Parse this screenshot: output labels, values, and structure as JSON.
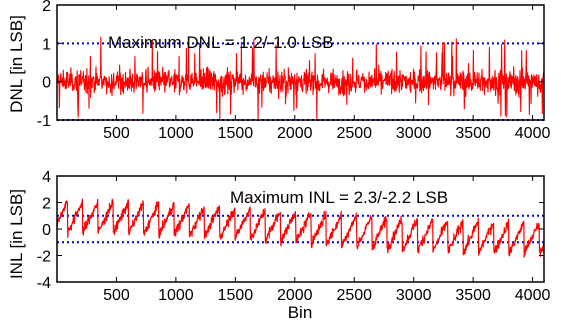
{
  "chart_data": [
    {
      "type": "line",
      "xlabel": "",
      "ylabel": "DNL  [in LSB]",
      "xlim": [
        0,
        4096
      ],
      "ylim": [
        -1,
        2
      ],
      "xticks": [
        500,
        1000,
        1500,
        2000,
        2500,
        3000,
        3500,
        4000
      ],
      "xtick_labels": [
        "500",
        "1000",
        "1500",
        "2000",
        "2500",
        "3000",
        "3500",
        "4000"
      ],
      "yticks": [
        -1,
        0,
        1,
        2
      ],
      "ytick_labels": [
        "-1",
        "0",
        "1",
        "2"
      ],
      "annotation": "Maximum DNL = 1.2/-1.0 LSB",
      "series": [
        {
          "color": "#ff0000",
          "style": "solid",
          "description_values": {
            "max": 1.2,
            "min": -1.0
          }
        }
      ],
      "reference_lines": [
        {
          "y": 1,
          "color": "#0000cc",
          "style": "dotted"
        },
        {
          "y": -1,
          "color": "#0000cc",
          "style": "dotted"
        }
      ]
    },
    {
      "type": "line",
      "xlabel": "Bin",
      "ylabel": "INL  [in LSB]",
      "xlim": [
        0,
        4096
      ],
      "ylim": [
        -4,
        4
      ],
      "xticks": [
        500,
        1000,
        1500,
        2000,
        2500,
        3000,
        3500,
        4000
      ],
      "xtick_labels": [
        "500",
        "1000",
        "1500",
        "2000",
        "2500",
        "3000",
        "3500",
        "4000"
      ],
      "yticks": [
        -4,
        -2,
        0,
        2,
        4
      ],
      "ytick_labels": [
        "-4",
        "-2",
        "0",
        "2",
        "4"
      ],
      "annotation": "Maximum INL = 2.3/-2.2 LSB",
      "series": [
        {
          "color": "#ff0000",
          "style": "solid",
          "description_values": {
            "max": 2.3,
            "min": -2.2
          }
        }
      ],
      "reference_lines": [
        {
          "y": 1,
          "color": "#0000cc",
          "style": "dotted"
        },
        {
          "y": -1,
          "color": "#0000cc",
          "style": "dotted"
        }
      ]
    }
  ],
  "colors": {
    "series": "#ff0000",
    "reference": "#0000cc",
    "axes": "#000000"
  }
}
